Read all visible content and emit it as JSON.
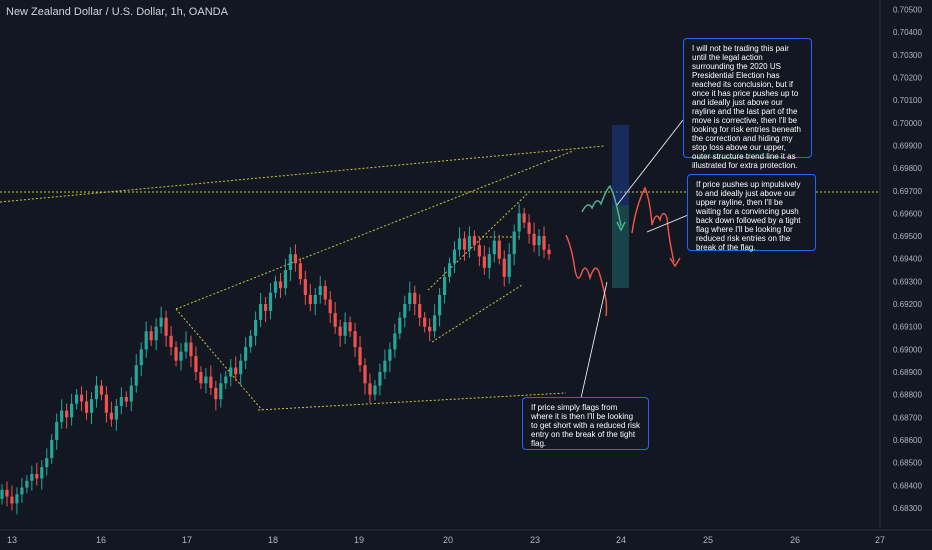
{
  "header": {
    "title": "New Zealand Dollar / U.S. Dollar, 1h, OANDA"
  },
  "colors": {
    "up": "#26a69a",
    "down": "#ef5350",
    "trend": "#c9c63a",
    "note_border": "#2962ff",
    "red_path": "#f0594a",
    "green_path": "#4fb892"
  },
  "notes": {
    "top_right": "I will not be trading this pair until the legal action surrounding the 2020 US Presidential Election has reached its conclusion, but if once it has price pushes up to and ideally just above our rayline and the last part of the move is corrective, then I'll be looking for risk entries beneath the correction and hiding my stop loss above our upper, outer structure trend line it as illustrated for extra protection.",
    "right_middle": "If price pushes up impulsively to and ideally just above our upper rayline, then I'll be waiting for a convincing push back down followed by a tight flag where I'll be looking for reduced risk entries on the break of the flag.",
    "bottom_middle": "If price simply flags from where it is then I'll be looking to get short with a reduced risk entry on the break of the tight flag."
  },
  "chart_data": {
    "type": "candlestick",
    "title": "New Zealand Dollar / U.S. Dollar, 1h, OANDA",
    "x_ticks": [
      "13",
      "16",
      "17",
      "18",
      "19",
      "20",
      "23",
      "24",
      "25",
      "26",
      "27"
    ],
    "y_ticks": [
      "0.70500",
      "0.70400",
      "0.70300",
      "0.70200",
      "0.70100",
      "0.70000",
      "0.69900",
      "0.69800",
      "0.69700",
      "0.69600",
      "0.69500",
      "0.69400",
      "0.69300",
      "0.69200",
      "0.69100",
      "0.69000",
      "0.68900",
      "0.68800",
      "0.68700",
      "0.68600",
      "0.68500",
      "0.68400",
      "0.68300"
    ],
    "ylim": [
      0.6826,
      0.7052
    ],
    "grid": false,
    "rayline_level": 0.6971,
    "closes": [
      0.6838,
      0.6835,
      0.6832,
      0.6836,
      0.6839,
      0.6842,
      0.6845,
      0.6843,
      0.6848,
      0.6852,
      0.686,
      0.6868,
      0.6873,
      0.687,
      0.6876,
      0.688,
      0.6877,
      0.6872,
      0.6878,
      0.6884,
      0.688,
      0.6872,
      0.6869,
      0.6875,
      0.6879,
      0.6877,
      0.6884,
      0.6893,
      0.69,
      0.6908,
      0.6904,
      0.691,
      0.6914,
      0.6906,
      0.6901,
      0.6895,
      0.6899,
      0.6903,
      0.6897,
      0.689,
      0.6885,
      0.6888,
      0.6883,
      0.6878,
      0.6885,
      0.6888,
      0.6892,
      0.6889,
      0.6895,
      0.6901,
      0.6906,
      0.6913,
      0.692,
      0.6917,
      0.6925,
      0.693,
      0.6927,
      0.6935,
      0.6942,
      0.6938,
      0.6931,
      0.6924,
      0.692,
      0.6924,
      0.6928,
      0.6922,
      0.6916,
      0.691,
      0.6906,
      0.6912,
      0.6908,
      0.6901,
      0.6893,
      0.6885,
      0.688,
      0.6884,
      0.689,
      0.6895,
      0.69,
      0.6907,
      0.6914,
      0.692,
      0.6925,
      0.692,
      0.6914,
      0.691,
      0.6908,
      0.6915,
      0.6924,
      0.6932,
      0.6938,
      0.6944,
      0.6949,
      0.6944,
      0.695,
      0.6946,
      0.6941,
      0.6936,
      0.6942,
      0.6948,
      0.694,
      0.6932,
      0.6942,
      0.6952,
      0.696,
      0.6956,
      0.6951,
      0.6946,
      0.695,
      0.6944,
      0.6942
    ]
  }
}
